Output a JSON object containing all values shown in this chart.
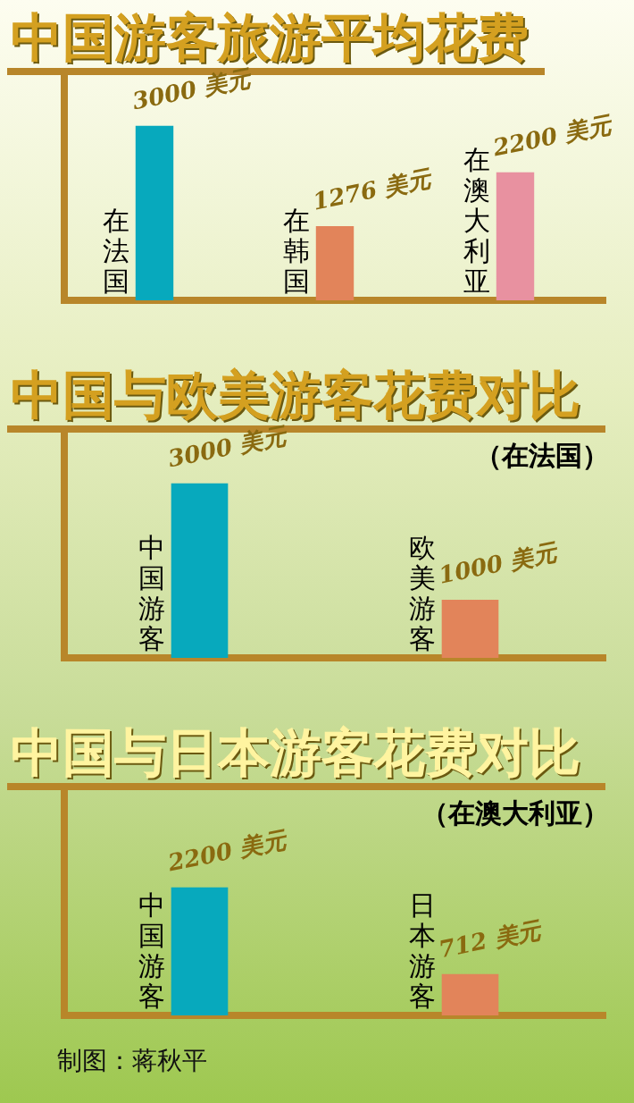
{
  "chart_data": [
    {
      "type": "bar",
      "title": "中国游客旅游平均花费",
      "categories": [
        "在法国",
        "在韩国",
        "在澳大利亚"
      ],
      "values": [
        3000,
        1276,
        2200
      ],
      "colors": [
        "#07a9bd",
        "#e2845a",
        "#e891a0"
      ],
      "value_labels": [
        "3000 美元",
        "1276 美元",
        "2200 美元"
      ]
    },
    {
      "type": "bar",
      "title": "中国与欧美游客花费对比",
      "subtitle": "（在法国）",
      "categories": [
        "中国游客",
        "欧美游客"
      ],
      "values": [
        3000,
        1000
      ],
      "colors": [
        "#07a9bd",
        "#e2845a"
      ],
      "value_labels": [
        "3000 美元",
        "1000 美元"
      ]
    },
    {
      "type": "bar",
      "title": "中国与日本游客花费对比",
      "subtitle": "（在澳大利亚）",
      "categories": [
        "中国游客",
        "日本游客"
      ],
      "values": [
        2200,
        712
      ],
      "colors": [
        "#07a9bd",
        "#e2845a"
      ],
      "value_labels": [
        "2200 美元",
        "712 美元"
      ],
      "annotations": [
        "制图：蒋秋平"
      ]
    }
  ]
}
